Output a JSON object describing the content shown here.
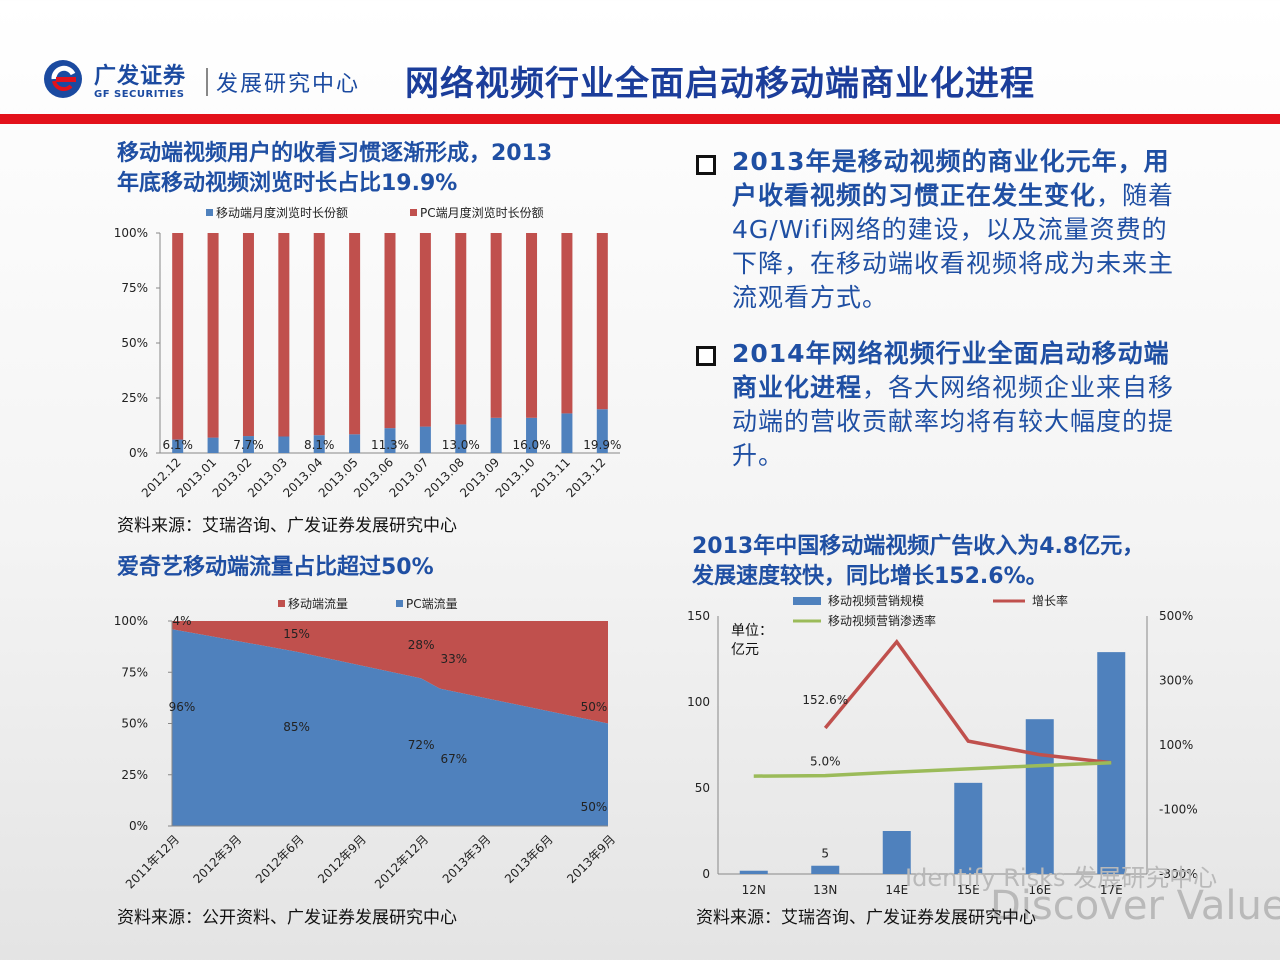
{
  "header": {
    "logo_cn": "广发证券",
    "logo_en": "GF SECURITIES",
    "logo_sub": "发展研究中心",
    "title": "网络视频行业全面启动移动端商业化进程"
  },
  "chart1": {
    "title_line1": "移动端视频用户的收看习惯逐渐形成，2013",
    "title_line2": "年底移动视频浏览时长占比19.9%",
    "source": "资料来源：艾瑞咨询、广发证券发展研究中心"
  },
  "chart2": {
    "title": "爱奇艺移动端流量占比超过50%",
    "source": "资料来源：公开资料、广发证券发展研究中心"
  },
  "chart3": {
    "title_line1": "2013年中国移动端视频广告收入为4.8亿元，",
    "title_line2": "发展速度较快，同比增长152.6%。",
    "unit_line1": "单位：",
    "unit_line2": "亿元",
    "source": "资料来源：艾瑞咨询、广发证券发展研究中心"
  },
  "bullets": [
    {
      "bold": "2013年是移动视频的商业化元年，用户收看视频的习惯正在发生变化",
      "normal": "，随着4G/Wifi网络的建设，以及流量资费的下降，在移动端收看视频将成为未来主流观看方式。"
    },
    {
      "bold": "2014年网络视频行业全面启动移动端商业化进程",
      "normal": "，各大网络视频企业来自移动端的营收贡献率均将有较大幅度的提升。"
    }
  ],
  "watermark": {
    "line1": "Identify Risks 发展研究中心",
    "line2": "Discover Value"
  },
  "colors": {
    "blue": "#4f81bd",
    "red": "#c0504d",
    "green": "#9bbb59",
    "title_blue": "#1f4fa3",
    "rule_red": "#e3111b"
  },
  "chart_data": [
    {
      "type": "bar",
      "stacked": true,
      "categories": [
        "2012.12",
        "2013.01",
        "2013.02",
        "2013.03",
        "2013.04",
        "2013.05",
        "2013.06",
        "2013.07",
        "2013.08",
        "2013.09",
        "2013.10",
        "2013.11",
        "2013.12"
      ],
      "series": [
        {
          "name": "移动端月度浏览时长份额",
          "color": "#4f81bd",
          "values": [
            6.1,
            7.0,
            7.7,
            7.5,
            8.1,
            8.5,
            11.3,
            12.0,
            13.0,
            16.0,
            16.0,
            18.0,
            19.9
          ]
        },
        {
          "name": "PC端月度浏览时长份额",
          "color": "#c0504d",
          "values": [
            93.9,
            93.0,
            92.3,
            92.5,
            91.9,
            91.5,
            88.7,
            88.0,
            87.0,
            84.0,
            84.0,
            82.0,
            80.1
          ]
        }
      ],
      "data_labels": [
        {
          "index": 0,
          "text": "6.1%"
        },
        {
          "index": 2,
          "text": "7.7%"
        },
        {
          "index": 4,
          "text": "8.1%"
        },
        {
          "index": 6,
          "text": "11.3%"
        },
        {
          "index": 8,
          "text": "13.0%"
        },
        {
          "index": 10,
          "text": "16.0%"
        },
        {
          "index": 12,
          "text": "19.9%"
        }
      ],
      "yticks": [
        "0%",
        "25%",
        "50%",
        "75%",
        "100%"
      ],
      "ylim": [
        0,
        100
      ],
      "legend": "top"
    },
    {
      "type": "area",
      "stacked": true,
      "categories": [
        "2011年12月",
        "2012年3月",
        "2012年6月",
        "2012年9月",
        "2012年12月",
        "2013年3月",
        "2013年6月",
        "2013年9月"
      ],
      "x": [
        0,
        1,
        2,
        3,
        4,
        5,
        6,
        7
      ],
      "series": [
        {
          "name": "PC端流量",
          "color": "#4f81bd",
          "x": [
            0,
            2,
            4,
            4.3,
            7
          ],
          "values": [
            96,
            85,
            72,
            67,
            50
          ]
        },
        {
          "name": "移动端流量",
          "color": "#c0504d",
          "x": [
            0,
            2,
            4,
            4.3,
            7
          ],
          "values": [
            4,
            15,
            28,
            33,
            50
          ]
        }
      ],
      "labels": [
        {
          "text": "4%"
        },
        {
          "text": "15%"
        },
        {
          "text": "28%"
        },
        {
          "text": "33%"
        },
        {
          "text": "50%"
        },
        {
          "text": "96%"
        },
        {
          "text": "85%"
        },
        {
          "text": "72%"
        },
        {
          "text": "67%"
        },
        {
          "text": "50%"
        }
      ],
      "yticks": [
        "0%",
        "25%",
        "50%",
        "75%",
        "100%"
      ],
      "ylim": [
        0,
        100
      ],
      "legend": "top"
    },
    {
      "type": "bar",
      "combo": true,
      "categories": [
        "12N",
        "13N",
        "14E",
        "15E",
        "16E",
        "17E"
      ],
      "series": [
        {
          "name": "移动视频营销规模",
          "type": "bar",
          "axis": "left",
          "color": "#4f81bd",
          "values": [
            1.9,
            4.8,
            25,
            53,
            90,
            129
          ]
        },
        {
          "name": "增长率",
          "type": "line",
          "axis": "right",
          "color": "#c0504d",
          "values": [
            null,
            152.6,
            420,
            112,
            70,
            45
          ]
        },
        {
          "name": "移动视频营销渗透率",
          "type": "line",
          "axis": "right",
          "color": "#9bbb59",
          "values": [
            3.5,
            5.0,
            16,
            26,
            36,
            45
          ]
        }
      ],
      "data_labels": [
        {
          "text": "5"
        },
        {
          "text": "152.6%"
        },
        {
          "text": "5.0%"
        }
      ],
      "yticks_left": [
        "0",
        "50",
        "100",
        "150"
      ],
      "ylim_left": [
        0,
        150
      ],
      "yticks_right": [
        "-300%",
        "-100%",
        "100%",
        "300%",
        "500%"
      ],
      "ylim_right": [
        -300,
        500
      ],
      "legend": "top"
    }
  ]
}
